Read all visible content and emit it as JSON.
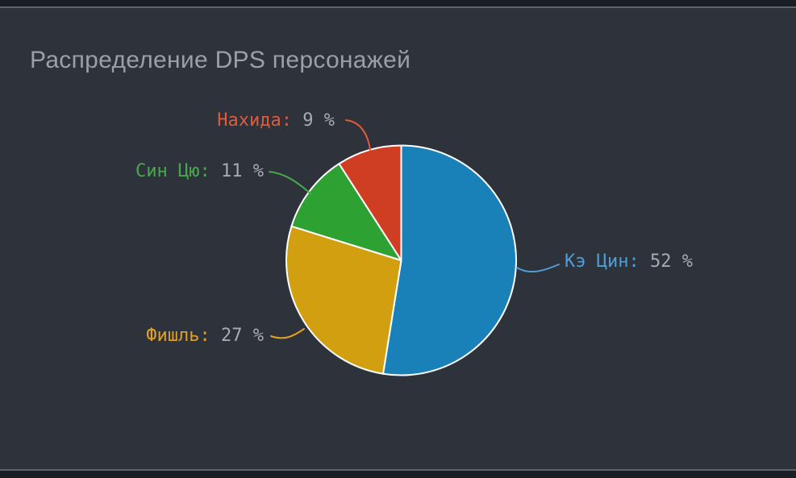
{
  "chart_data": {
    "type": "pie",
    "title": "Распределение DPS персонажей",
    "unit": "%",
    "start_angle": "top",
    "direction": "clockwise",
    "label_format": "{name}: {value} %",
    "legend_position": "outside-callouts",
    "background_color": "#2e323a",
    "slice_border_color": "#ffffff",
    "slices": [
      {
        "key": "keqing",
        "name": "Кэ Цин",
        "value": 52,
        "color": "#1a80b8",
        "label_color": "#4d9fd6"
      },
      {
        "key": "fischl",
        "name": "Фишль",
        "value": 27,
        "color": "#d29f10",
        "label_color": "#dfa226"
      },
      {
        "key": "xingqiu",
        "name": "Син Цю",
        "value": 11,
        "color": "#2ea133",
        "label_color": "#48a94c"
      },
      {
        "key": "nahida",
        "name": "Нахида",
        "value": 9,
        "color": "#cf3e23",
        "label_color": "#e05b3c"
      }
    ]
  }
}
